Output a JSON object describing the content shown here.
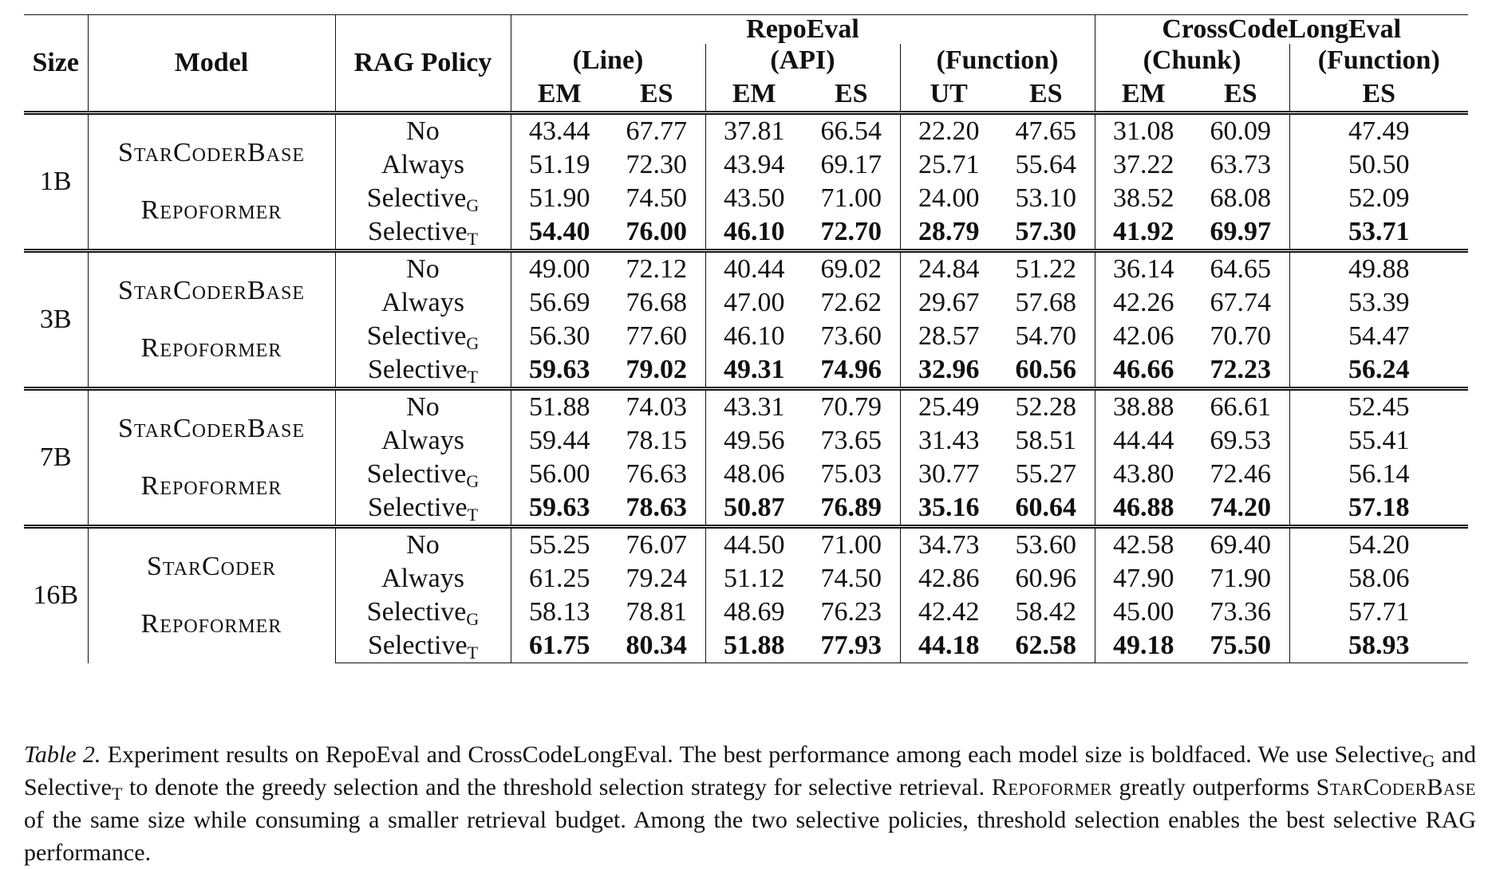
{
  "header": {
    "size": "Size",
    "model": "Model",
    "rag_policy": "RAG Policy",
    "benchmarks": [
      "RepoEval",
      "CrossCodeLongEval"
    ],
    "subsets": [
      "(Line)",
      "(API)",
      "(Function)",
      "(Chunk)",
      "(Function)"
    ],
    "metrics": [
      "EM",
      "ES",
      "EM",
      "ES",
      "UT",
      "ES",
      "EM",
      "ES",
      "ES"
    ]
  },
  "groups": [
    {
      "size": "1B",
      "models": [
        "StarCoderBase",
        "Repoformer"
      ],
      "rows": [
        {
          "policy": "No",
          "sub": "",
          "values": [
            "43.44",
            "67.77",
            "37.81",
            "66.54",
            "22.20",
            "47.65",
            "31.08",
            "60.09",
            "47.49"
          ]
        },
        {
          "policy": "Always",
          "sub": "",
          "values": [
            "51.19",
            "72.30",
            "43.94",
            "69.17",
            "25.71",
            "55.64",
            "37.22",
            "63.73",
            "50.50"
          ]
        },
        {
          "policy": "Selective",
          "sub": "G",
          "values": [
            "51.90",
            "74.50",
            "43.50",
            "71.00",
            "24.00",
            "53.10",
            "38.52",
            "68.08",
            "52.09"
          ]
        },
        {
          "policy": "Selective",
          "sub": "T",
          "values": [
            "54.40",
            "76.00",
            "46.10",
            "72.70",
            "28.79",
            "57.30",
            "41.92",
            "69.97",
            "53.71"
          ]
        }
      ]
    },
    {
      "size": "3B",
      "models": [
        "StarCoderBase",
        "Repoformer"
      ],
      "rows": [
        {
          "policy": "No",
          "sub": "",
          "values": [
            "49.00",
            "72.12",
            "40.44",
            "69.02",
            "24.84",
            "51.22",
            "36.14",
            "64.65",
            "49.88"
          ]
        },
        {
          "policy": "Always",
          "sub": "",
          "values": [
            "56.69",
            "76.68",
            "47.00",
            "72.62",
            "29.67",
            "57.68",
            "42.26",
            "67.74",
            "53.39"
          ]
        },
        {
          "policy": "Selective",
          "sub": "G",
          "values": [
            "56.30",
            "77.60",
            "46.10",
            "73.60",
            "28.57",
            "54.70",
            "42.06",
            "70.70",
            "54.47"
          ]
        },
        {
          "policy": "Selective",
          "sub": "T",
          "values": [
            "59.63",
            "79.02",
            "49.31",
            "74.96",
            "32.96",
            "60.56",
            "46.66",
            "72.23",
            "56.24"
          ]
        }
      ]
    },
    {
      "size": "7B",
      "models": [
        "StarCoderBase",
        "Repoformer"
      ],
      "rows": [
        {
          "policy": "No",
          "sub": "",
          "values": [
            "51.88",
            "74.03",
            "43.31",
            "70.79",
            "25.49",
            "52.28",
            "38.88",
            "66.61",
            "52.45"
          ]
        },
        {
          "policy": "Always",
          "sub": "",
          "values": [
            "59.44",
            "78.15",
            "49.56",
            "73.65",
            "31.43",
            "58.51",
            "44.44",
            "69.53",
            "55.41"
          ]
        },
        {
          "policy": "Selective",
          "sub": "G",
          "values": [
            "56.00",
            "76.63",
            "48.06",
            "75.03",
            "30.77",
            "55.27",
            "43.80",
            "72.46",
            "56.14"
          ]
        },
        {
          "policy": "Selective",
          "sub": "T",
          "values": [
            "59.63",
            "78.63",
            "50.87",
            "76.89",
            "35.16",
            "60.64",
            "46.88",
            "74.20",
            "57.18"
          ]
        }
      ]
    },
    {
      "size": "16B",
      "models": [
        "StarCoder",
        "Repoformer"
      ],
      "rows": [
        {
          "policy": "No",
          "sub": "",
          "values": [
            "55.25",
            "76.07",
            "44.50",
            "71.00",
            "34.73",
            "53.60",
            "42.58",
            "69.40",
            "54.20"
          ]
        },
        {
          "policy": "Always",
          "sub": "",
          "values": [
            "61.25",
            "79.24",
            "51.12",
            "74.50",
            "42.86",
            "60.96",
            "47.90",
            "71.90",
            "58.06"
          ]
        },
        {
          "policy": "Selective",
          "sub": "G",
          "values": [
            "58.13",
            "78.81",
            "48.69",
            "76.23",
            "42.42",
            "58.42",
            "45.00",
            "73.36",
            "57.71"
          ]
        },
        {
          "policy": "Selective",
          "sub": "T",
          "values": [
            "61.75",
            "80.34",
            "51.88",
            "77.93",
            "44.18",
            "62.58",
            "49.18",
            "75.50",
            "58.93"
          ]
        }
      ]
    }
  ],
  "caption": {
    "label": "Table 2.",
    "s1": " Experiment results on RepoEval and CrossCodeLongEval. The best performance among each model size is boldfaced. We use Selective",
    "sub_g": "G",
    "s2": " and Selective",
    "sub_t": "T",
    "s3": " to denote the greedy selection and the threshold selection strategy for selective retrieval. ",
    "m1": "Repoformer",
    "s4": " greatly outperforms ",
    "m2": "StarCoderBase",
    "s5": " of the same size while consuming a smaller retrieval budget. Among the two selective policies, threshold selection enables the best selective RAG performance."
  }
}
